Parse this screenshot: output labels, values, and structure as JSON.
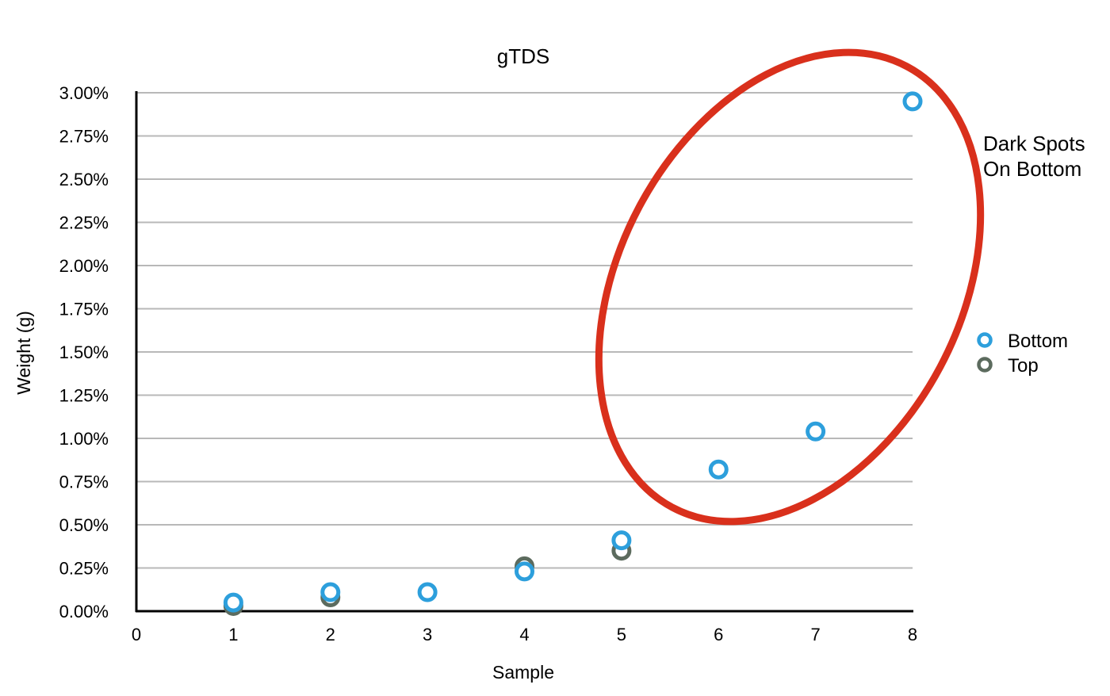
{
  "chart_data": {
    "type": "scatter",
    "title": "gTDS",
    "xlabel": "Sample",
    "ylabel": "Weight (g)",
    "xlim": [
      0,
      8
    ],
    "ylim": [
      0,
      0.03
    ],
    "x_ticks": [
      "0",
      "1",
      "2",
      "3",
      "4",
      "5",
      "6",
      "7",
      "8"
    ],
    "y_ticks": [
      "0.00%",
      "0.25%",
      "0.50%",
      "0.75%",
      "1.00%",
      "1.25%",
      "1.50%",
      "1.75%",
      "2.00%",
      "2.25%",
      "2.50%",
      "2.75%",
      "3.00%"
    ],
    "grid": "horizontal",
    "legend_position": "right",
    "series": [
      {
        "name": "Bottom",
        "color": "#2d9fdc",
        "x": [
          1,
          2,
          3,
          4,
          5,
          6,
          7,
          8
        ],
        "y": [
          0.0005,
          0.0011,
          0.0011,
          0.0023,
          0.0041,
          0.0082,
          0.0104,
          0.0295
        ]
      },
      {
        "name": "Top",
        "color": "#5c6b5e",
        "x": [
          1,
          2,
          4,
          5
        ],
        "y": [
          0.0003,
          0.0008,
          0.0026,
          0.0035
        ]
      }
    ],
    "annotation": {
      "lines": [
        "Dark Spots",
        "On Bottom"
      ],
      "ellipse_color": "#d9301c"
    }
  }
}
